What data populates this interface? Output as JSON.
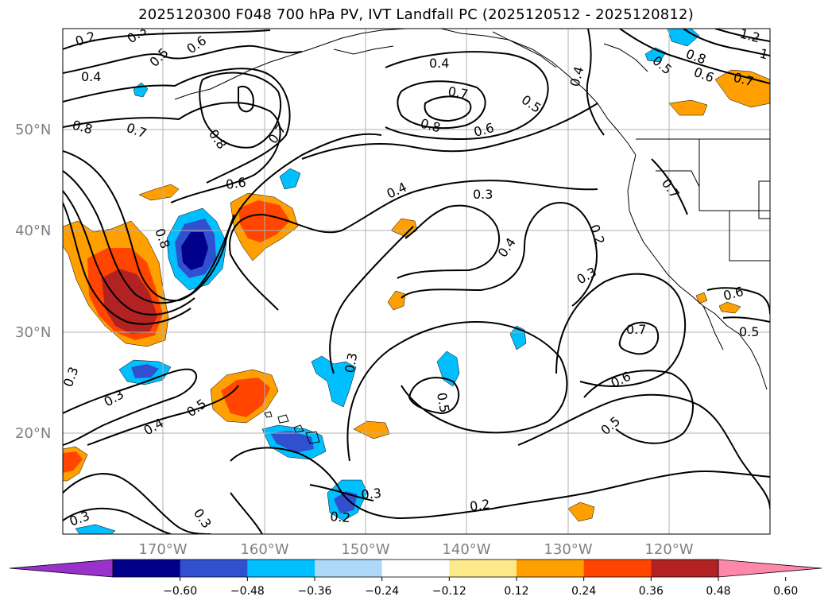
{
  "title": "2025120300 F048 700 hPa PV, IVT Landfall PC (2025120512 - 2025120812)",
  "lat_labels": [
    "50°N",
    "40°N",
    "30°N",
    "20°N"
  ],
  "lon_labels": [
    "170°W",
    "160°W",
    "150°W",
    "140°W",
    "130°W",
    "120°W"
  ],
  "colorbar": {
    "ticks": [
      "−0.60",
      "−0.48",
      "−0.36",
      "−0.24",
      "−0.12",
      "0.12",
      "0.24",
      "0.36",
      "0.48",
      "0.60"
    ],
    "colors": [
      "#9932cc",
      "#00008b",
      "#3050d0",
      "#00bfff",
      "#add8f8",
      "#ffffff",
      "#fbe98a",
      "#ffa000",
      "#ff4500",
      "#b22222",
      "#ff88aa"
    ]
  },
  "contour_labels": [
    "0.2",
    "0.3",
    "0.5",
    "0.6",
    "0.4",
    "0.8",
    "0.7",
    "0.8",
    "0.6",
    "0.8",
    "0.7",
    "0.4",
    "0.7",
    "0.8",
    "0.6",
    "0.5",
    "0.4",
    "0.4",
    "0.3",
    "0.4",
    "0.2",
    "0.3",
    "0.7",
    "0.6",
    "0.5",
    "0.3",
    "0.5",
    "0.3",
    "0.3",
    "0.5",
    "0.4",
    "0.3",
    "0.2",
    "0.2",
    "0.3",
    "0.3",
    "0.6",
    "0.5",
    "0.8",
    "0.6",
    "0.7",
    "1.2",
    "1",
    "0.7",
    "0.5"
  ]
}
